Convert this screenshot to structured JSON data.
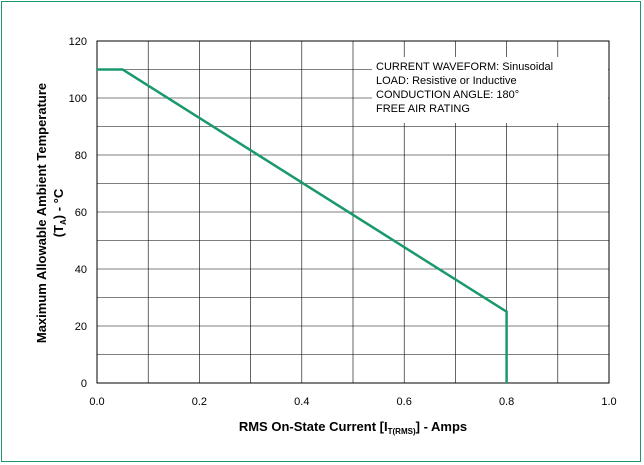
{
  "chart_data": {
    "type": "line",
    "title": "",
    "xlabel": {
      "main": "RMS On-State Current [I",
      "sub": "T(RMS)",
      "tail": "] - Amps"
    },
    "ylabel": {
      "line1": "Maximum Allowable Ambient Temperature",
      "line2_pre": "(T",
      "line2_sub": "A",
      "line2_post": ") - °C"
    },
    "xlim": [
      0,
      1.0
    ],
    "ylim": [
      0,
      120
    ],
    "x_ticks": [
      "0.0",
      "0.2",
      "0.4",
      "0.6",
      "0.8",
      "1.0"
    ],
    "y_ticks": [
      "0",
      "20",
      "40",
      "60",
      "80",
      "100",
      "120"
    ],
    "grid": true,
    "series": [
      {
        "x": [
          0.0,
          0.05,
          0.8,
          0.8
        ],
        "y": [
          110,
          110,
          25,
          0
        ],
        "color": "#1a9a6b"
      }
    ],
    "annotations": [
      "CURRENT WAVEFORM: Sinusoidal",
      "LOAD: Resistive or Inductive",
      "CONDUCTION ANGLE: 180°",
      "FREE AIR RATING"
    ]
  }
}
